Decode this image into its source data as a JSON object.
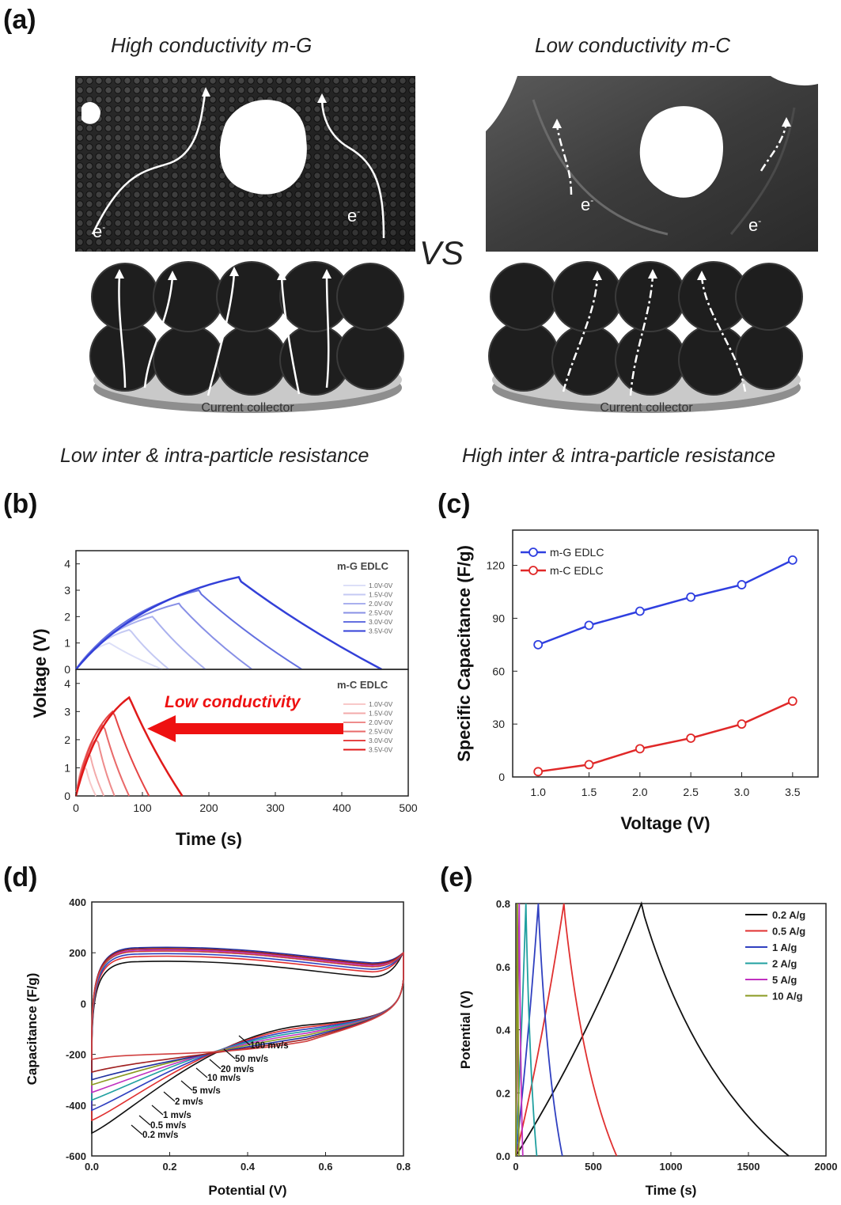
{
  "panel_a": {
    "letter": "(a)",
    "left_title": "High conductivity m-G",
    "right_title": "Low conductivity m-C",
    "vs": "VS",
    "electron": "e",
    "electron_sup": "-",
    "collector_label": "Current collector",
    "left_caption": "Low inter & intra-particle resistance",
    "right_caption": "High inter & intra-particle resistance"
  },
  "panel_b": {
    "letter": "(b)"
  },
  "panel_c": {
    "letter": "(c)"
  },
  "panel_d": {
    "letter": "(d)"
  },
  "panel_e": {
    "letter": "(e)"
  },
  "chart_data": [
    {
      "id": "b-top",
      "type": "line",
      "legend_title": "m-G EDLC",
      "legend_position": "top-right",
      "ylabel": "Voltage (V)",
      "ylim": [
        0,
        4.5
      ],
      "xlim": [
        0,
        500
      ],
      "yticks": [
        "0",
        "1",
        "2",
        "3",
        "4"
      ],
      "series": [
        {
          "name": "1.0V-0V",
          "color": "#dcdff8",
          "charge_end": [
            50,
            1.0
          ],
          "discharge_end": [
            130,
            0
          ]
        },
        {
          "name": "1.5V-0V",
          "color": "#c4c9f3",
          "charge_end": [
            80,
            1.5
          ],
          "discharge_end": [
            140,
            0
          ]
        },
        {
          "name": "2.0V-0V",
          "color": "#a9b0ee",
          "charge_end": [
            115,
            2.0
          ],
          "discharge_end": [
            195,
            0
          ]
        },
        {
          "name": "2.5V-0V",
          "color": "#8890e6",
          "charge_end": [
            155,
            2.5
          ],
          "discharge_end": [
            265,
            0
          ]
        },
        {
          "name": "3.0V-0V",
          "color": "#6470e0",
          "charge_end": [
            185,
            3.0
          ],
          "discharge_end": [
            340,
            0
          ]
        },
        {
          "name": "3.5V-0V",
          "color": "#3340d8",
          "charge_end": [
            245,
            3.5
          ],
          "discharge_end": [
            460,
            0
          ]
        }
      ]
    },
    {
      "id": "b-bottom",
      "type": "line",
      "legend_title": "m-C EDLC",
      "legend_position": "top-right",
      "annotation": "Low conductivity",
      "xlabel": "Time (s)",
      "ylim": [
        0,
        4.5
      ],
      "xlim": [
        0,
        500
      ],
      "xticks": [
        "0",
        "100",
        "200",
        "300",
        "400",
        "500"
      ],
      "yticks": [
        "0",
        "1",
        "2",
        "3",
        "4"
      ],
      "series": [
        {
          "name": "1.0V-0V",
          "color": "#f8c9c9",
          "charge_end": [
            12,
            1.0
          ],
          "discharge_end": [
            30,
            0
          ]
        },
        {
          "name": "1.5V-0V",
          "color": "#f3aaaa",
          "charge_end": [
            18,
            1.5
          ],
          "discharge_end": [
            42,
            0
          ]
        },
        {
          "name": "2.0V-0V",
          "color": "#ee8c8c",
          "charge_end": [
            30,
            2.0
          ],
          "discharge_end": [
            58,
            0
          ]
        },
        {
          "name": "2.5V-0V",
          "color": "#e96a6a",
          "charge_end": [
            40,
            2.5
          ],
          "discharge_end": [
            80,
            0
          ]
        },
        {
          "name": "3.0V-0V",
          "color": "#e54545",
          "charge_end": [
            55,
            3.0
          ],
          "discharge_end": [
            110,
            0
          ]
        },
        {
          "name": "3.5V-0V",
          "color": "#e01a1a",
          "charge_end": [
            80,
            3.5
          ],
          "discharge_end": [
            160,
            0
          ]
        }
      ]
    },
    {
      "id": "c",
      "type": "line",
      "xlabel": "Voltage (V)",
      "ylabel": "Specific Capacitance (F/g)",
      "xlim": [
        0.75,
        3.75
      ],
      "ylim": [
        0,
        140
      ],
      "xticks": [
        "1.0",
        "1.5",
        "2.0",
        "2.5",
        "3.0",
        "3.5"
      ],
      "yticks": [
        "0",
        "30",
        "60",
        "90",
        "120"
      ],
      "legend_position": "top-left",
      "x": [
        1.0,
        1.5,
        2.0,
        2.5,
        3.0,
        3.5
      ],
      "series": [
        {
          "name": "m-G EDLC",
          "color": "#2f3fe0",
          "values": [
            75,
            86,
            94,
            102,
            109,
            123
          ]
        },
        {
          "name": "m-C EDLC",
          "color": "#e02828",
          "values": [
            3,
            7,
            16,
            22,
            30,
            43
          ]
        }
      ]
    },
    {
      "id": "d",
      "type": "line",
      "xlabel": "Potential (V)",
      "ylabel": "Capacitance (F/g)",
      "xlim": [
        0,
        0.8
      ],
      "ylim": [
        -600,
        400
      ],
      "xticks": [
        "0.0",
        "0.2",
        "0.4",
        "0.6",
        "0.8"
      ],
      "yticks": [
        "-600",
        "-400",
        "-200",
        "0",
        "200",
        "400"
      ],
      "series": [
        {
          "name": "0.2 mv/s",
          "color": "#111111",
          "top": 165,
          "bottom": -510
        },
        {
          "name": "0.5 mv/s",
          "color": "#e03030",
          "top": 185,
          "bottom": -460
        },
        {
          "name": "1 mv/s",
          "color": "#3040c0",
          "top": 195,
          "bottom": -420
        },
        {
          "name": "2 mv/s",
          "color": "#20a0a0",
          "top": 205,
          "bottom": -380
        },
        {
          "name": "5 mv/s",
          "color": "#c030c0",
          "top": 210,
          "bottom": -350
        },
        {
          "name": "10 mv/s",
          "color": "#8a9a20",
          "top": 215,
          "bottom": -320
        },
        {
          "name": "20 mv/s",
          "color": "#2030a0",
          "top": 220,
          "bottom": -300
        },
        {
          "name": "50 mv/s",
          "color": "#a02020",
          "top": 215,
          "bottom": -270
        },
        {
          "name": "100 mv/s",
          "color": "#d04040",
          "top": 205,
          "bottom": -220
        }
      ]
    },
    {
      "id": "e",
      "type": "line",
      "xlabel": "Time (s)",
      "ylabel": "Potential (V)",
      "xlim": [
        0,
        2000
      ],
      "ylim": [
        0,
        0.8
      ],
      "xticks": [
        "0",
        "500",
        "1000",
        "1500",
        "2000"
      ],
      "yticks": [
        "0.0",
        "0.2",
        "0.4",
        "0.6",
        "0.8"
      ],
      "legend_position": "top-right",
      "series": [
        {
          "name": "0.2 A/g",
          "color": "#111111",
          "peak": 810,
          "end": 1760
        },
        {
          "name": "0.5 A/g",
          "color": "#e03030",
          "peak": 310,
          "end": 650
        },
        {
          "name": "1 A/g",
          "color": "#3040c0",
          "peak": 145,
          "end": 300
        },
        {
          "name": "2 A/g",
          "color": "#20a0a0",
          "peak": 65,
          "end": 135
        },
        {
          "name": "5 A/g",
          "color": "#c030c0",
          "peak": 22,
          "end": 45
        },
        {
          "name": "10 A/g",
          "color": "#8a9a20",
          "peak": 10,
          "end": 20
        }
      ]
    }
  ]
}
